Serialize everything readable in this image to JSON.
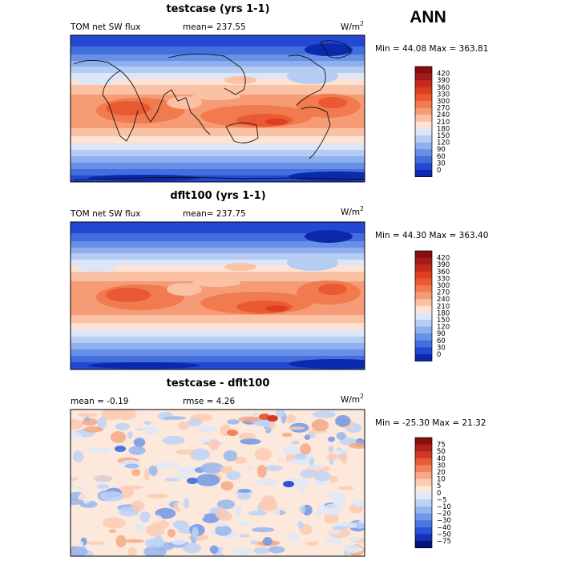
{
  "header": {
    "season": "ANN"
  },
  "chart_data": [
    {
      "type": "heatmap",
      "title": "testcase (yrs 1-1)",
      "variable": "TOM net SW flux",
      "stat_text": "mean= 237.55",
      "units": "W/m",
      "units_exp": "2",
      "minmax_text": "Min =  44.08 Max = 363.81",
      "colorbar": {
        "levels": [
          "420",
          "390",
          "360",
          "330",
          "300",
          "270",
          "240",
          "210",
          "180",
          "150",
          "120",
          "90",
          "60",
          "30",
          "0"
        ],
        "colors": [
          "#8a0d0d",
          "#a51b1b",
          "#c42b1e",
          "#dc3e22",
          "#ea5a32",
          "#f17a4f",
          "#f59c76",
          "#fac1a5",
          "#fde3d4",
          "#dbe7f8",
          "#b6cdf3",
          "#8fb0ee",
          "#6790e6",
          "#426fdd",
          "#2349d2",
          "#0b29ad"
        ]
      }
    },
    {
      "type": "heatmap",
      "title": "dflt100 (yrs 1-1)",
      "variable": "TOM net SW flux",
      "stat_text": "mean= 237.75",
      "units": "W/m",
      "units_exp": "2",
      "minmax_text": "Min =  44.30 Max = 363.40",
      "colorbar": {
        "levels": [
          "420",
          "390",
          "360",
          "330",
          "300",
          "270",
          "240",
          "210",
          "180",
          "150",
          "120",
          "90",
          "60",
          "30",
          "0"
        ],
        "colors": [
          "#8a0d0d",
          "#a51b1b",
          "#c42b1e",
          "#dc3e22",
          "#ea5a32",
          "#f17a4f",
          "#f59c76",
          "#fac1a5",
          "#fde3d4",
          "#dbe7f8",
          "#b6cdf3",
          "#8fb0ee",
          "#6790e6",
          "#426fdd",
          "#2349d2",
          "#0b29ad"
        ]
      }
    },
    {
      "type": "heatmap",
      "title": "testcase - dflt100",
      "stat_text": "mean =   -0.19",
      "stat2_text": "rmse =    4.26",
      "units": "W/m",
      "units_exp": "2",
      "minmax_text": "Min = -25.30 Max =  21.32",
      "colorbar": {
        "levels": [
          "75",
          "50",
          "40",
          "30",
          "20",
          "10",
          "5",
          "0",
          "−5",
          "−10",
          "−20",
          "−30",
          "−40",
          "−50",
          "−75"
        ],
        "colors": [
          "#8a0d0d",
          "#b01f1f",
          "#d13a22",
          "#e65d36",
          "#f0835a",
          "#f6a885",
          "#fbcab3",
          "#fde8dc",
          "#dde8f8",
          "#bdd2f4",
          "#97b6ef",
          "#7098e8",
          "#4a78e0",
          "#2a53d5",
          "#1233b8",
          "#05127a"
        ]
      }
    }
  ]
}
